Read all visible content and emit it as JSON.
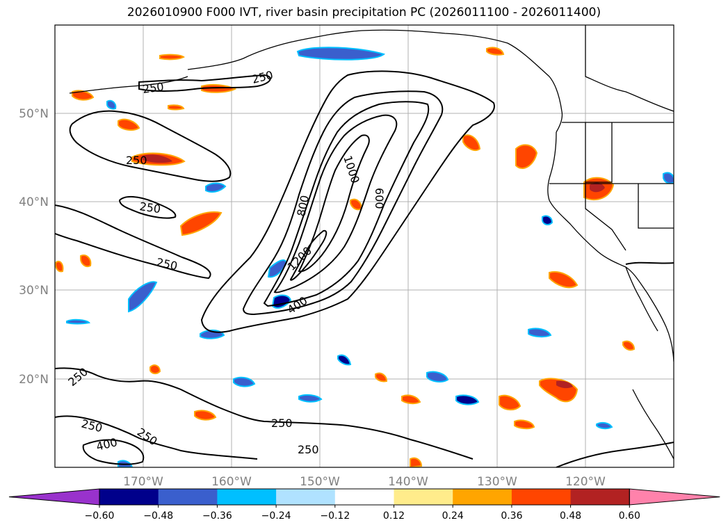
{
  "chart_data": {
    "type": "contour",
    "title": "2026010900 F000 IVT, river basin precipitation PC (2026011100 - 2026011400)",
    "x_axis": {
      "ticks": [
        "170°W",
        "160°W",
        "150°W",
        "140°W",
        "130°W",
        "120°W"
      ],
      "range_lon": [
        -180,
        -110
      ]
    },
    "y_axis": {
      "ticks": [
        "50°N",
        "40°N",
        "30°N",
        "20°N"
      ],
      "range_lat": [
        10,
        60
      ]
    },
    "ivt_contour_labels": [
      "250",
      "250",
      "250",
      "250",
      "250",
      "250",
      "250",
      "250",
      "250",
      "250",
      "800",
      "1000",
      "600",
      "1200",
      "400",
      "400"
    ],
    "colorbar": {
      "ticks": [
        "−0.60",
        "−0.48",
        "−0.36",
        "−0.24",
        "−0.12",
        "0.12",
        "0.24",
        "0.36",
        "0.48",
        "0.60"
      ],
      "colors": [
        "#9932cc",
        "#00008b",
        "#3a5fcd",
        "#00bfff",
        "#b0e2ff",
        "#ffffff",
        "#ffec8b",
        "#ffa500",
        "#ff4500",
        "#b22222",
        "#ff82ab"
      ],
      "extend": "both"
    }
  }
}
